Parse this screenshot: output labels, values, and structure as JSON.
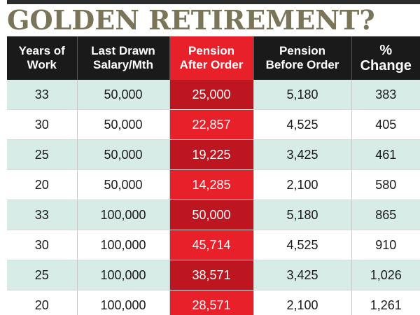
{
  "title": "GOLDEN RETIREMENT?",
  "colors": {
    "header_bg": "#1a1a1a",
    "highlight_red": "#e8202a",
    "highlight_red_dark": "#bd1620",
    "row_shade": "#d7ece6",
    "title_color": "#7a7458"
  },
  "chart_data": {
    "type": "table",
    "title": "GOLDEN RETIREMENT?",
    "columns": [
      {
        "line1": "Years of",
        "line2": "Work"
      },
      {
        "line1": "Last Drawn",
        "line2": "Salary/Mth"
      },
      {
        "line1": "Pension",
        "line2": "After Order"
      },
      {
        "line1": "Pension",
        "line2": "Before Order"
      },
      {
        "line1": "%",
        "line2": "Change"
      }
    ],
    "rows": [
      [
        "33",
        "50,000",
        "25,000",
        "5,180",
        "383"
      ],
      [
        "30",
        "50,000",
        "22,857",
        "4,525",
        "405"
      ],
      [
        "25",
        "50,000",
        "19,225",
        "3,425",
        "461"
      ],
      [
        "20",
        "50,000",
        "14,285",
        "2,100",
        "580"
      ],
      [
        "33",
        "100,000",
        "50,000",
        "5,180",
        "865"
      ],
      [
        "30",
        "100,000",
        "45,714",
        "4,525",
        "910"
      ],
      [
        "25",
        "100,000",
        "38,571",
        "3,425",
        "1,026"
      ],
      [
        "20",
        "100,000",
        "28,571",
        "2,100",
        "1,261"
      ]
    ]
  }
}
